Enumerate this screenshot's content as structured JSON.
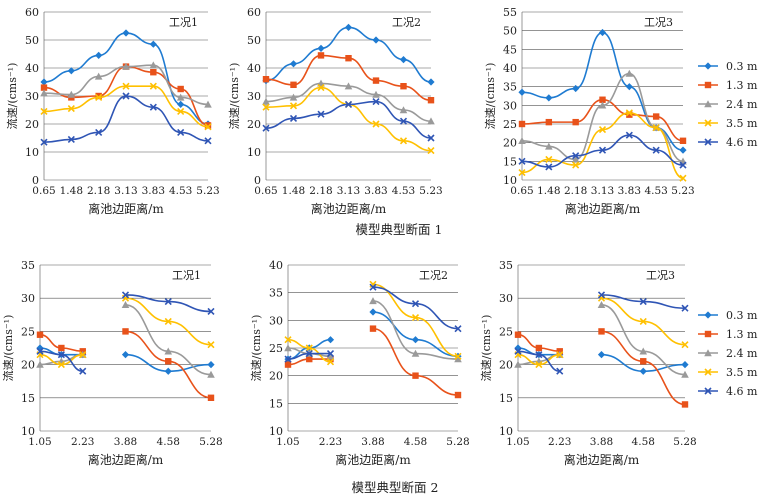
{
  "figure": {
    "section_captions": [
      "模型典型断面 1",
      "模型典型断面 2"
    ]
  },
  "legend": {
    "series_names": [
      "0.3 m",
      "1.3 m",
      "2.4 m",
      "3.5 m",
      "4.6 m"
    ],
    "colors": [
      "#1f7bd1",
      "#e8521a",
      "#9a9a9a",
      "#ffc000",
      "#2f55b5"
    ],
    "markers": [
      "diamond",
      "square",
      "triangle",
      "x",
      "x"
    ]
  },
  "chart_data": [
    {
      "type": "line",
      "panel": "section1-case1",
      "title": "工况1",
      "xlabel": "离池边距离/m",
      "ylabel": "流速/(cms⁻¹)",
      "x": [
        0.65,
        1.48,
        2.18,
        3.13,
        3.83,
        4.53,
        5.23
      ],
      "x_ticks": [
        "0.65",
        "1.48",
        "2.18",
        "3.13",
        "3.83",
        "4.53",
        "5.23"
      ],
      "ylim": [
        0,
        60
      ],
      "y_ticks": [
        0,
        10,
        20,
        30,
        40,
        50,
        60
      ],
      "series": [
        {
          "name": "0.3 m",
          "values": [
            35,
            39,
            44.5,
            52.5,
            48.5,
            27,
            20
          ]
        },
        {
          "name": "1.3 m",
          "values": [
            33,
            29.5,
            30,
            40.5,
            38.5,
            32.5,
            19.5
          ]
        },
        {
          "name": "2.4 m",
          "values": [
            31,
            30.5,
            37,
            40.5,
            41,
            29.5,
            27
          ]
        },
        {
          "name": "3.5 m",
          "values": [
            24.5,
            25.5,
            29.5,
            33.5,
            33.5,
            24.5,
            19
          ]
        },
        {
          "name": "4.6 m",
          "values": [
            13.5,
            14.5,
            17,
            30,
            26,
            17,
            14
          ]
        }
      ]
    },
    {
      "type": "line",
      "panel": "section1-case2",
      "title": "工况2",
      "xlabel": "离池边距离/m",
      "ylabel": "流速/(cms⁻¹)",
      "x": [
        0.65,
        1.48,
        2.18,
        3.13,
        3.83,
        4.53,
        5.23
      ],
      "x_ticks": [
        "0.65",
        "1.48",
        "2.18",
        "3.13",
        "3.83",
        "4.53",
        "5.23"
      ],
      "ylim": [
        0,
        60
      ],
      "y_ticks": [
        0,
        10,
        20,
        30,
        40,
        50,
        60
      ],
      "series": [
        {
          "name": "0.3 m",
          "values": [
            35.5,
            41.5,
            47,
            54.5,
            50,
            43,
            35
          ]
        },
        {
          "name": "1.3 m",
          "values": [
            36,
            34,
            44.5,
            43.5,
            35.5,
            33.5,
            28.5
          ]
        },
        {
          "name": "2.4 m",
          "values": [
            28,
            29.5,
            34.5,
            33.5,
            30.5,
            25,
            21
          ]
        },
        {
          "name": "3.5 m",
          "values": [
            26,
            26.5,
            33,
            27,
            20,
            14,
            10.5
          ]
        },
        {
          "name": "4.6 m",
          "values": [
            18.5,
            22,
            23.5,
            27,
            28,
            21,
            15
          ]
        }
      ]
    },
    {
      "type": "line",
      "panel": "section1-case3",
      "title": "工况3",
      "xlabel": "离池边距离/m",
      "ylabel": "流速/(cms⁻¹)",
      "x": [
        0.65,
        1.48,
        2.18,
        3.13,
        3.83,
        4.53,
        5.23
      ],
      "x_ticks": [
        "0.65",
        "1.48",
        "2.18",
        "3.13",
        "3.83",
        "4.53",
        "5.23"
      ],
      "ylim": [
        10,
        55
      ],
      "y_ticks": [
        10,
        15,
        20,
        25,
        30,
        35,
        40,
        45,
        50,
        55
      ],
      "series": [
        {
          "name": "0.3 m",
          "values": [
            33.5,
            32,
            34.5,
            49.5,
            35,
            24,
            18
          ]
        },
        {
          "name": "1.3 m",
          "values": [
            25,
            25.5,
            25.5,
            31.5,
            27.5,
            27,
            20.5
          ]
        },
        {
          "name": "2.4 m",
          "values": [
            20.5,
            19,
            15.5,
            30,
            38.5,
            24,
            15
          ]
        },
        {
          "name": "3.5 m",
          "values": [
            12,
            15.5,
            14,
            23.5,
            28,
            24,
            10.5
          ]
        },
        {
          "name": "4.6 m",
          "values": [
            15,
            13.5,
            16.5,
            18,
            22,
            18,
            14
          ]
        }
      ]
    },
    {
      "type": "line",
      "panel": "section2-case1",
      "title": "工况1",
      "xlabel": "离池边距离/m",
      "ylabel": "流速/(cms⁻¹)",
      "x": [
        1.05,
        1.64,
        2.23,
        3.88,
        4.58,
        5.28
      ],
      "x_ticks": [
        "1.05",
        "2.23",
        "3.88",
        "4.58",
        "5.28"
      ],
      "ylim": [
        10,
        35
      ],
      "y_ticks": [
        10,
        15,
        20,
        25,
        30,
        35
      ],
      "series": [
        {
          "name": "0.3 m",
          "values": [
            22.5,
            21.5,
            21.5,
            21.5,
            19,
            20
          ]
        },
        {
          "name": "1.3 m",
          "values": [
            24.5,
            22.5,
            22,
            25,
            20.5,
            15
          ]
        },
        {
          "name": "2.4 m",
          "values": [
            20,
            20.5,
            21.5,
            29,
            22,
            18.5
          ]
        },
        {
          "name": "3.5 m",
          "values": [
            21.5,
            20,
            21.5,
            30,
            26.5,
            23
          ]
        },
        {
          "name": "4.6 m",
          "values": [
            22,
            21.5,
            19,
            30.5,
            29.5,
            28
          ]
        }
      ]
    },
    {
      "type": "line",
      "panel": "section2-case2",
      "title": "工况2",
      "xlabel": "离池边距离/m",
      "ylabel": "流速/(cms⁻¹)",
      "x": [
        1.05,
        1.64,
        2.23,
        3.88,
        4.58,
        5.28
      ],
      "x_ticks": [
        "1.05",
        "2.23",
        "3.88",
        "4.58",
        "5.28"
      ],
      "ylim": [
        10,
        40
      ],
      "y_ticks": [
        10,
        15,
        20,
        25,
        30,
        35,
        40
      ],
      "series": [
        {
          "name": "0.3 m",
          "values": [
            23,
            25,
            26.5,
            31.5,
            26.5,
            23.5
          ]
        },
        {
          "name": "1.3 m",
          "values": [
            22,
            23,
            23,
            28.5,
            20,
            16.5
          ]
        },
        {
          "name": "2.4 m",
          "values": [
            25,
            24,
            23.5,
            33.5,
            24,
            23
          ]
        },
        {
          "name": "3.5 m",
          "values": [
            26.5,
            25,
            22.5,
            36.5,
            30.5,
            23.5
          ]
        },
        {
          "name": "4.6 m",
          "values": [
            23,
            24,
            24,
            36,
            33,
            28.5
          ]
        }
      ]
    },
    {
      "type": "line",
      "panel": "section2-case3",
      "title": "工况3",
      "xlabel": "离池边距离/m",
      "ylabel": "流速/(cms⁻¹)",
      "x": [
        1.05,
        1.64,
        2.23,
        3.88,
        4.58,
        5.28
      ],
      "x_ticks": [
        "1.05",
        "2.23",
        "3.88",
        "4.58",
        "5.28"
      ],
      "ylim": [
        10,
        35
      ],
      "y_ticks": [
        10,
        15,
        20,
        25,
        30,
        35
      ],
      "series": [
        {
          "name": "0.3 m",
          "values": [
            22.5,
            21.5,
            21.5,
            21.5,
            19,
            20
          ]
        },
        {
          "name": "1.3 m",
          "values": [
            24.5,
            22.5,
            22,
            25,
            20.5,
            14
          ]
        },
        {
          "name": "2.4 m",
          "values": [
            20,
            20.5,
            21.5,
            29,
            22,
            18.5
          ]
        },
        {
          "name": "3.5 m",
          "values": [
            21.5,
            20,
            21.5,
            30,
            26.5,
            23
          ]
        },
        {
          "name": "4.6 m",
          "values": [
            22,
            21.5,
            19,
            30.5,
            29.5,
            28.5
          ]
        }
      ]
    }
  ]
}
